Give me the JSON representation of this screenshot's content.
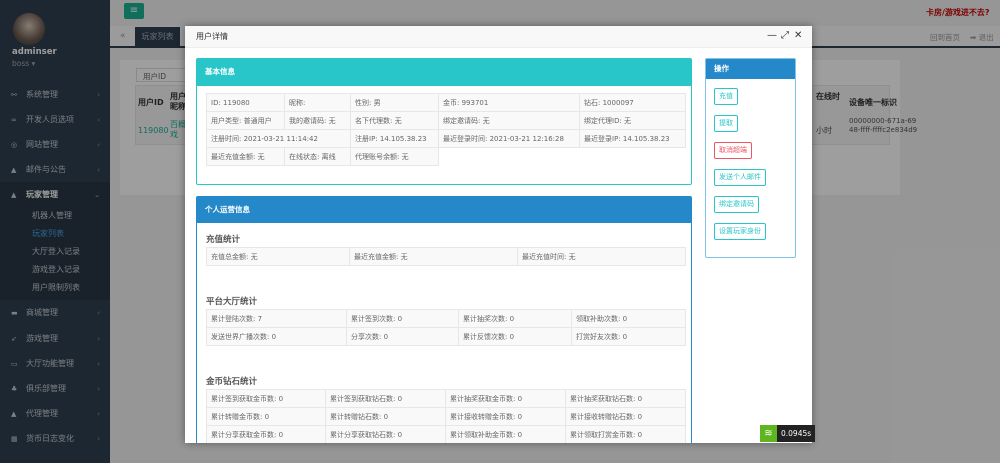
{
  "sidebar": {
    "username": "adminser",
    "role": "boss ▾",
    "items": [
      {
        "label": "系统管理",
        "icon": "share-icon"
      },
      {
        "label": "开发人员选项",
        "icon": "infinity-icon"
      },
      {
        "label": "网站管理",
        "icon": "globe-icon"
      },
      {
        "label": "邮件与公告",
        "icon": "bell-icon"
      },
      {
        "label": "玩家管理",
        "icon": "user-icon"
      },
      {
        "label": "商城管理",
        "icon": "cart-icon"
      },
      {
        "label": "游戏管理",
        "icon": "rocket-icon"
      },
      {
        "label": "大厅功能管理",
        "icon": "monitor-icon"
      },
      {
        "label": "俱乐部管理",
        "icon": "group-icon"
      },
      {
        "label": "代理管理",
        "icon": "agent-icon"
      },
      {
        "label": "货币日志变化",
        "icon": "calendar-icon"
      }
    ],
    "subitems": [
      "机器人管理",
      "玩家列表",
      "大厅登入记录",
      "游戏登入记录",
      "用户限制列表"
    ]
  },
  "topbar": {
    "alert": "卡房/游戏进不去?",
    "home": "回到首页",
    "logout": "退出"
  },
  "tabs": {
    "back": "«",
    "current": "玩家列表"
  },
  "background_table": {
    "filter": "用户ID",
    "headers": [
      "用户ID",
      "用户昵称",
      "在线时",
      "设备唯一标识"
    ],
    "row": [
      "119080",
      "百概戏",
      "小时",
      "00000000-671a-6948-ffff-ffffc2e834d9"
    ]
  },
  "modal": {
    "title": "用户详情",
    "basic": {
      "title": "基本信息",
      "rows": [
        [
          "ID: 119080",
          "昵称:",
          "性别: 男",
          "金币: 993701",
          "钻石: 1000097"
        ],
        [
          "用户类型: 普通用户",
          "我的邀请码: 无",
          "名下代理数: 无",
          "绑定邀请码: 无",
          "绑定代理ID: 无"
        ],
        [
          "注册时间: 2021-03-21 11:14:42",
          "注册IP: 14.105.38.23",
          "最近登录时间: 2021-03-21 12:16:28",
          "最近登录IP: 14.105.38.23"
        ],
        [
          "最近充值金额: 无",
          "在线状态: 离线",
          "代理账号余额: 无"
        ]
      ]
    },
    "ops": {
      "title": "个人运营信息",
      "recharge": {
        "title": "充值统计",
        "cells": [
          "充值总金额: 无",
          "最近充值金额: 无",
          "最近充值时间: 无"
        ]
      },
      "hall": {
        "title": "平台大厅统计",
        "rows": [
          [
            "累计登陆次数: 7",
            "累计签到次数: 0",
            "累计抽奖次数: 0",
            "领取补助次数: 0"
          ],
          [
            "发送世界广播次数: 0",
            "分享次数: 0",
            "累计反馈次数: 0",
            "打赏好友次数: 0"
          ]
        ]
      },
      "coins": {
        "title": "金币钻石统计",
        "rows": [
          [
            "累计签到获取金币数: 0",
            "累计签到获取钻石数: 0",
            "累计抽奖获取金币数: 0",
            "累计抽奖获取钻石数: 0"
          ],
          [
            "累计转赠金币数: 0",
            "累计转赠钻石数: 0",
            "累计接收转赠金币数: 0",
            "累计接收转赠钻石数: 0"
          ],
          [
            "累计分享获取金币数: 0",
            "累计分享获取钻石数: 0",
            "累计领取补助金币数: 0",
            "累计领取打赏金币数: 0"
          ]
        ]
      }
    },
    "actions": {
      "title": "操作",
      "buttons": [
        "充值",
        "提取",
        "取消超端",
        "发送个人邮件",
        "绑定邀请码",
        "设置玩家身份"
      ]
    }
  },
  "timer": "0.0945s",
  "colors": {
    "teal": "#29c6c9",
    "blue": "#2488c9",
    "danger": "#ed5565",
    "sidebar": "#2f4050",
    "green": "#1ab394"
  }
}
